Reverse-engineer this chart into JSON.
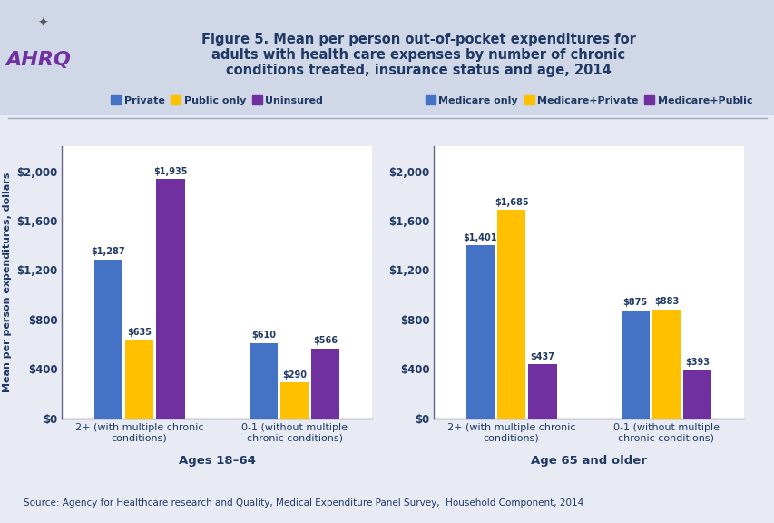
{
  "title": "Figure 5. Mean per person out-of-pocket expenditures for\nadults with health care expenses by number of chronic\nconditions treated, insurance status and age, 2014",
  "title_color": "#1F3864",
  "header_bg": "#D0D8E8",
  "plot_area_bg": "#E8EBF4",
  "plot_bg_color": "#FFFFFF",
  "ylabel": "Mean per person expenditures, dollars",
  "source": "Source: Agency for Healthcare research and Quality, Medical Expenditure Panel Survey,  Household Component, 2014",
  "left_chart": {
    "groups": [
      "2+ (with multiple chronic\nconditions)",
      "0-1 (without multiple\nchronic conditions)"
    ],
    "series": [
      "Private",
      "Public only",
      "Uninsured"
    ],
    "colors": [
      "#4472C4",
      "#FFC000",
      "#7030A0"
    ],
    "values": [
      [
        1287,
        635,
        1935
      ],
      [
        610,
        290,
        566
      ]
    ],
    "labels": [
      [
        "$1,287",
        "$635",
        "$1,935"
      ],
      [
        "$610",
        "$290",
        "$566"
      ]
    ],
    "xlabel": "Ages 18–64",
    "xlabel_color": "#1F3864",
    "ylim": [
      0,
      2200
    ],
    "yticks": [
      0,
      400,
      800,
      1200,
      1600,
      2000
    ],
    "yticklabels": [
      "$0",
      "$400",
      "$800",
      "$1,200",
      "$1,600",
      "$2,000"
    ]
  },
  "right_chart": {
    "groups": [
      "2+ (with multiple chronic\nconditions)",
      "0-1 (without multiple\nchronic conditions)"
    ],
    "series": [
      "Medicare only",
      "Medicare+Private",
      "Medicare+Public"
    ],
    "colors": [
      "#4472C4",
      "#FFC000",
      "#7030A0"
    ],
    "values": [
      [
        1401,
        1685,
        437
      ],
      [
        875,
        883,
        393
      ]
    ],
    "labels": [
      [
        "$1,401",
        "$1,685",
        "$437"
      ],
      [
        "$875",
        "$883",
        "$393"
      ]
    ],
    "xlabel": "Age 65 and older",
    "xlabel_color": "#1F3864",
    "ylim": [
      0,
      2200
    ],
    "yticks": [
      0,
      400,
      800,
      1200,
      1600,
      2000
    ],
    "yticklabels": [
      "$0",
      "$400",
      "$800",
      "$1,200",
      "$1,600",
      "$2,000"
    ]
  }
}
